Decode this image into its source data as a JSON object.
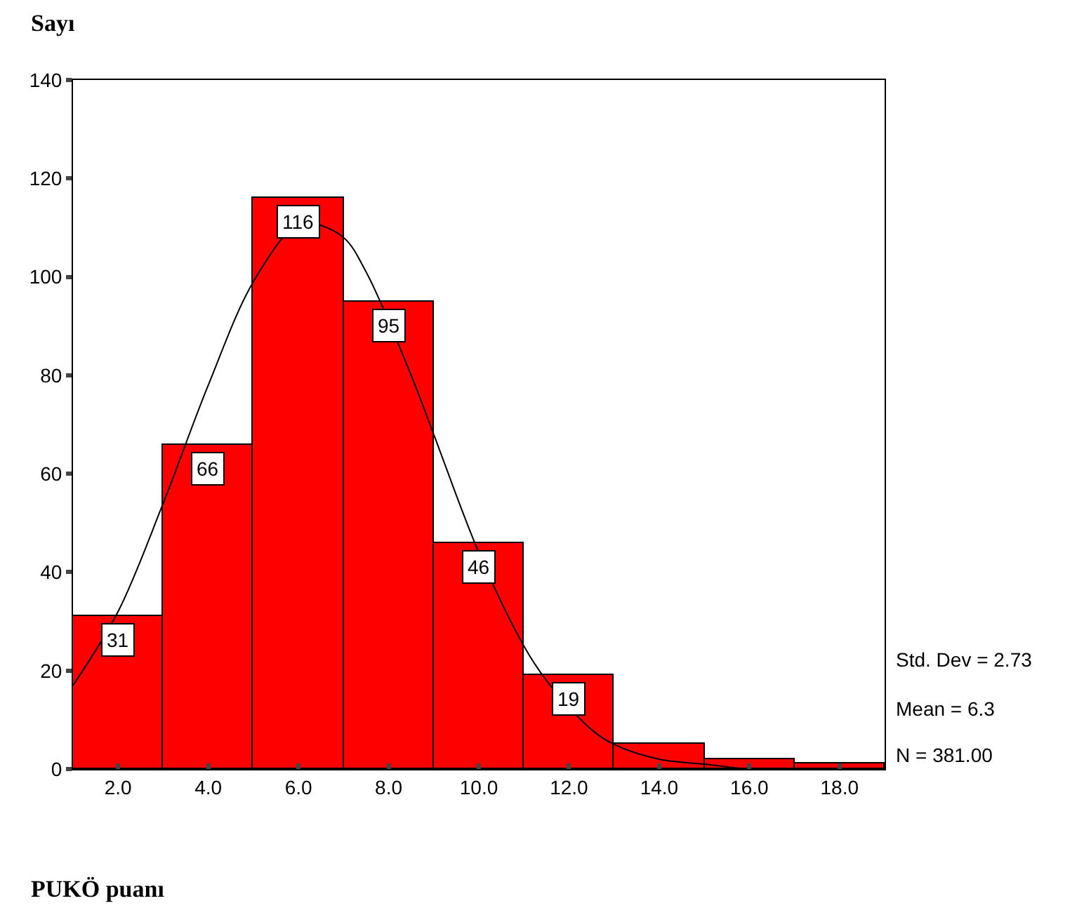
{
  "chart_data": {
    "type": "histogram",
    "xlabel": "PUKÖ puanı",
    "ylabel": "Sayı",
    "bins": [
      1,
      3,
      5,
      7,
      9,
      11,
      13,
      15,
      17,
      19
    ],
    "values": [
      31,
      66,
      116,
      95,
      46,
      19,
      5,
      2,
      1
    ],
    "value_labels": [
      "31",
      "66",
      "116",
      "95",
      "46",
      "19",
      null,
      null,
      null
    ],
    "color": "#ff0000",
    "series": [
      {
        "type": "line",
        "color": "#000000",
        "x": [
          1,
          2,
          3,
          4,
          5,
          6,
          6.3,
          7,
          7.5,
          8.5,
          9,
          10,
          11,
          11.5,
          12.5,
          13,
          14,
          15,
          16,
          17,
          18,
          19
        ],
        "values": [
          17,
          32,
          54,
          78,
          99,
          111,
          111,
          108,
          101,
          80,
          68,
          44,
          25,
          18,
          8,
          5,
          2,
          1,
          0,
          0,
          0,
          0
        ]
      }
    ],
    "xlim": [
      1,
      19
    ],
    "ylim": [
      0,
      140
    ],
    "xticks": [
      {
        "value": 2,
        "label": "2.0"
      },
      {
        "value": 4,
        "label": "4.0"
      },
      {
        "value": 6,
        "label": "6.0"
      },
      {
        "value": 8,
        "label": "8.0"
      },
      {
        "value": 10,
        "label": "10.0"
      },
      {
        "value": 12,
        "label": "12.0"
      },
      {
        "value": 14,
        "label": "14.0"
      },
      {
        "value": 16,
        "label": "16.0"
      },
      {
        "value": 18,
        "label": "18.0"
      }
    ],
    "yticks": [
      0,
      20,
      40,
      60,
      80,
      100,
      120,
      140
    ],
    "grid": false,
    "annotations": [
      "Std. Dev = 2.73",
      "Mean = 6.3",
      "N = 381.00"
    ]
  }
}
